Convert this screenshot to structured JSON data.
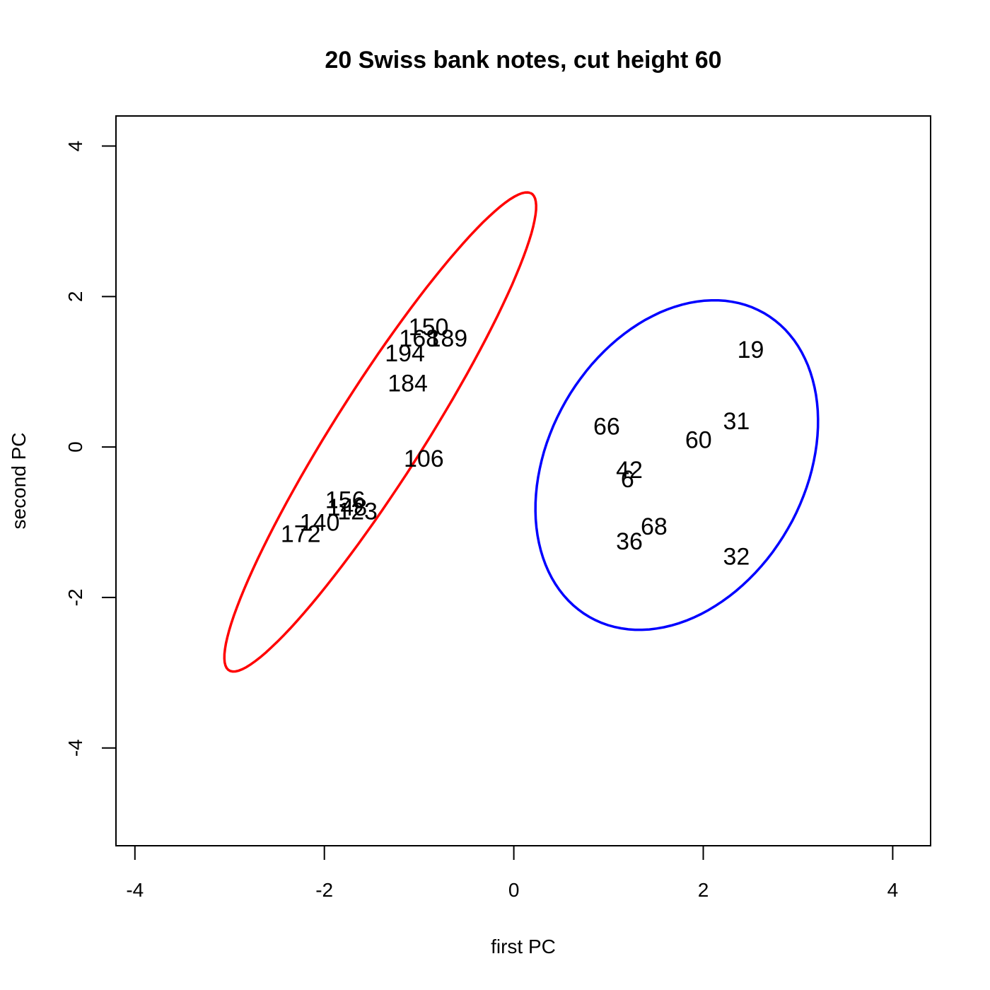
{
  "chart_data": {
    "type": "scatter",
    "title": "20 Swiss bank notes, cut height 60",
    "xlabel": "first PC",
    "ylabel": "second PC",
    "xlim": [
      -4.2,
      4.4
    ],
    "ylim": [
      -5.3,
      4.4
    ],
    "xticks": [
      -4,
      -2,
      0,
      2,
      4
    ],
    "yticks": [
      -4,
      -2,
      0,
      2,
      4
    ],
    "grid": false,
    "points": [
      {
        "label": "150",
        "x": -0.9,
        "y": 1.6
      },
      {
        "label": "168",
        "x": -1.0,
        "y": 1.45
      },
      {
        "label": "189",
        "x": -0.7,
        "y": 1.45
      },
      {
        "label": "194",
        "x": -1.15,
        "y": 1.25
      },
      {
        "label": "184",
        "x": -1.12,
        "y": 0.85
      },
      {
        "label": "106",
        "x": -0.95,
        "y": -0.15
      },
      {
        "label": "156",
        "x": -1.78,
        "y": -0.7
      },
      {
        "label": "148",
        "x": -1.76,
        "y": -0.8
      },
      {
        "label": "123",
        "x": -1.65,
        "y": -0.85
      },
      {
        "label": "140",
        "x": -2.05,
        "y": -1.0
      },
      {
        "label": "172",
        "x": -2.25,
        "y": -1.15
      },
      {
        "label": "19",
        "x": 2.5,
        "y": 1.3
      },
      {
        "label": "31",
        "x": 2.35,
        "y": 0.35
      },
      {
        "label": "66",
        "x": 0.98,
        "y": 0.28
      },
      {
        "label": "60",
        "x": 1.95,
        "y": 0.1
      },
      {
        "label": "42",
        "x": 1.22,
        "y": -0.3
      },
      {
        "label": "6",
        "x": 1.2,
        "y": -0.42
      },
      {
        "label": "68",
        "x": 1.48,
        "y": -1.05
      },
      {
        "label": "36",
        "x": 1.22,
        "y": -1.25
      },
      {
        "label": "32",
        "x": 2.35,
        "y": -1.45
      }
    ],
    "series": [
      {
        "color": "#ff0000",
        "cx": -1.41,
        "cy": 0.2,
        "a": 3.55,
        "b": 0.5,
        "angle_deg": 63.5
      },
      {
        "color": "#0000ff",
        "cx": 1.72,
        "cy": -0.24,
        "a": 2.25,
        "b": 1.4,
        "angle_deg": 73
      }
    ]
  }
}
